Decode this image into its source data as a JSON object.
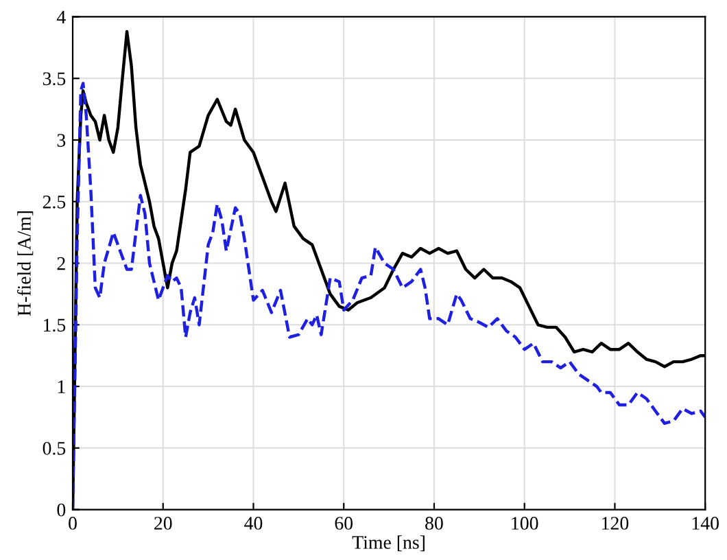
{
  "chart_data": {
    "type": "line",
    "xlabel": "Time [ns]",
    "ylabel": "H-field [A/m]",
    "series": [
      {
        "color": "#000000",
        "line_style": "solid",
        "x": [
          0,
          1,
          1.8,
          2.3,
          3,
          4,
          5,
          6,
          7,
          8,
          9,
          10,
          11,
          12,
          13,
          14,
          15,
          17,
          18,
          19,
          21,
          22,
          23,
          25,
          26,
          28,
          30,
          32,
          34,
          35,
          36,
          38,
          40,
          42,
          44,
          45,
          47,
          49,
          51,
          53,
          55,
          57,
          59,
          61,
          63,
          66,
          69,
          71,
          73,
          75,
          77,
          79,
          81,
          83,
          85,
          87,
          89,
          91,
          93,
          95,
          97,
          99,
          101,
          103,
          105,
          107,
          109,
          111,
          113,
          115,
          117,
          119,
          121,
          123,
          125,
          127,
          129,
          131,
          133,
          135,
          137,
          139,
          140
        ],
        "values": [
          0,
          2.5,
          3.2,
          3.4,
          3.3,
          3.2,
          3.15,
          3.0,
          3.2,
          3.0,
          2.9,
          3.1,
          3.5,
          3.88,
          3.6,
          3.1,
          2.8,
          2.5,
          2.3,
          2.2,
          1.8,
          2.0,
          2.1,
          2.6,
          2.9,
          2.95,
          3.2,
          3.33,
          3.15,
          3.12,
          3.25,
          3.0,
          2.9,
          2.7,
          2.5,
          2.42,
          2.65,
          2.3,
          2.2,
          2.15,
          1.95,
          1.75,
          1.65,
          1.62,
          1.68,
          1.72,
          1.8,
          1.95,
          2.08,
          2.05,
          2.12,
          2.08,
          2.12,
          2.08,
          2.1,
          1.95,
          1.88,
          1.95,
          1.88,
          1.88,
          1.85,
          1.8,
          1.65,
          1.5,
          1.48,
          1.48,
          1.4,
          1.28,
          1.3,
          1.28,
          1.35,
          1.3,
          1.3,
          1.35,
          1.28,
          1.22,
          1.2,
          1.16,
          1.2,
          1.2,
          1.22,
          1.25,
          1.25
        ]
      },
      {
        "color": "#1f1fe0",
        "line_style": "dashed",
        "x": [
          0,
          1,
          1.8,
          2.3,
          3,
          4,
          5,
          6,
          7,
          9,
          10,
          12,
          13,
          15,
          16,
          17,
          19,
          21,
          22,
          23,
          24,
          25,
          26,
          27,
          28,
          30,
          31,
          32,
          33,
          34,
          36,
          37,
          38,
          40,
          42,
          44,
          46,
          48,
          50,
          52,
          53,
          54,
          55,
          57,
          59,
          60,
          62,
          64,
          66,
          67,
          69,
          71,
          73,
          75,
          77,
          78,
          79,
          81,
          83,
          85,
          86,
          88,
          90,
          92,
          94,
          96,
          98,
          100,
          102,
          104,
          106,
          108,
          110,
          112,
          114,
          116,
          117,
          119,
          121,
          123,
          125,
          127,
          129,
          131,
          133,
          135,
          137,
          139,
          140
        ],
        "values": [
          0,
          2.2,
          3.4,
          3.46,
          3.2,
          2.6,
          1.8,
          1.72,
          2.0,
          2.25,
          2.15,
          1.95,
          1.95,
          2.55,
          2.4,
          2.0,
          1.7,
          1.9,
          1.85,
          1.88,
          1.8,
          1.4,
          1.6,
          1.72,
          1.5,
          2.15,
          2.25,
          2.48,
          2.35,
          2.1,
          2.45,
          2.4,
          2.2,
          1.7,
          1.78,
          1.6,
          1.78,
          1.4,
          1.42,
          1.55,
          1.5,
          1.58,
          1.42,
          1.88,
          1.85,
          1.62,
          1.7,
          1.88,
          1.9,
          2.13,
          2.0,
          1.95,
          1.8,
          1.85,
          1.95,
          1.8,
          1.55,
          1.55,
          1.5,
          1.75,
          1.7,
          1.55,
          1.52,
          1.48,
          1.55,
          1.45,
          1.4,
          1.3,
          1.35,
          1.2,
          1.2,
          1.15,
          1.2,
          1.1,
          1.05,
          1.0,
          0.95,
          0.95,
          0.85,
          0.85,
          0.95,
          0.9,
          0.8,
          0.7,
          0.72,
          0.82,
          0.78,
          0.8,
          0.75
        ]
      }
    ],
    "xlim": [
      0,
      140
    ],
    "xticks": [
      0,
      20,
      40,
      60,
      80,
      100,
      120,
      140
    ],
    "ylim": [
      0,
      4
    ],
    "yticks": [
      0,
      0.5,
      1,
      1.5,
      2,
      2.5,
      3,
      3.5,
      4
    ],
    "grid": true
  }
}
